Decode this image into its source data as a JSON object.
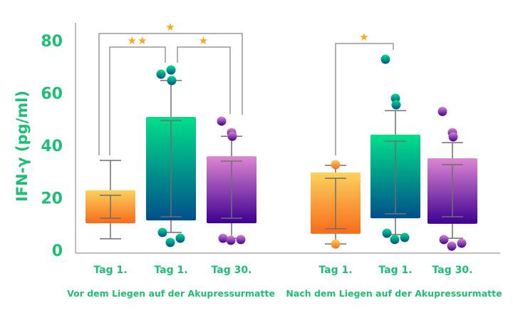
{
  "chart_data": {
    "type": "box",
    "ylabel": "IFN-γ (pg/ml)",
    "ylim": [
      0,
      80
    ],
    "yticks": [
      0,
      20,
      40,
      60,
      80
    ],
    "grid": false,
    "text_color": "#1dbf73",
    "groups": [
      {
        "label": "Vor dem Liegen auf der Akupressurmatte",
        "boxes": [
          {
            "label": "Tag 1.",
            "palette": "orange",
            "box": [
              10.3,
              22.9
            ],
            "inner": [
              12.2,
              21.0
            ],
            "whisker": [
              4.4,
              34.3
            ],
            "points": []
          },
          {
            "label": "Tag 1.",
            "palette": "teal",
            "box": [
              11.4,
              50.9
            ],
            "inner": [
              12.8,
              49.5
            ],
            "whisker": [
              6.8,
              64.8
            ],
            "points": [
              67.2,
              68.8,
              64.8,
              6.8,
              3.0,
              4.6
            ]
          },
          {
            "label": "Tag 30.",
            "palette": "purple",
            "box": [
              10.3,
              35.9
            ],
            "inner": [
              12.2,
              34.0
            ],
            "whisker": [
              4.6,
              43.5
            ],
            "points": [
              49.3,
              44.9,
              43.5,
              4.6,
              3.8,
              4.1
            ]
          }
        ],
        "significance": [
          {
            "from": 0,
            "to": 2,
            "stars": "★"
          },
          {
            "from": 0,
            "to": 1,
            "stars": "★★"
          },
          {
            "from": 1,
            "to": 2,
            "stars": "★"
          }
        ]
      },
      {
        "label": "Nach dem Liegen auf der Akupressurmatte",
        "boxes": [
          {
            "label": "Tag 1.",
            "palette": "orange",
            "box": [
              6.3,
              29.7
            ],
            "inner": [
              8.2,
              27.5
            ],
            "whisker": [
              2.4,
              32.4
            ],
            "points": [
              32.7,
              2.4
            ]
          },
          {
            "label": "Tag 1.",
            "palette": "teal",
            "box": [
              12.2,
              44.1
            ],
            "inner": [
              13.9,
              41.6
            ],
            "whisker": [
              6.0,
              53.3
            ],
            "points": [
              72.9,
              58.0,
              55.5,
              6.5,
              4.1,
              4.9
            ]
          },
          {
            "label": "Tag 30.",
            "palette": "purple",
            "box": [
              10.1,
              35.1
            ],
            "inner": [
              12.8,
              32.7
            ],
            "whisker": [
              4.6,
              41.1
            ],
            "points": [
              53.0,
              44.9,
              43.3,
              4.1,
              1.6,
              2.7
            ]
          }
        ],
        "significance": [
          {
            "from": 0,
            "to": 1,
            "stars": "★"
          }
        ]
      }
    ],
    "palettes": {
      "orange": [
        "#fcd25c",
        "#f76b1c"
      ],
      "teal": [
        "#00e08a",
        "#004f8a"
      ],
      "purple": [
        "#de86d2",
        "#3d0090"
      ]
    },
    "star_color": "#f9a61a"
  }
}
